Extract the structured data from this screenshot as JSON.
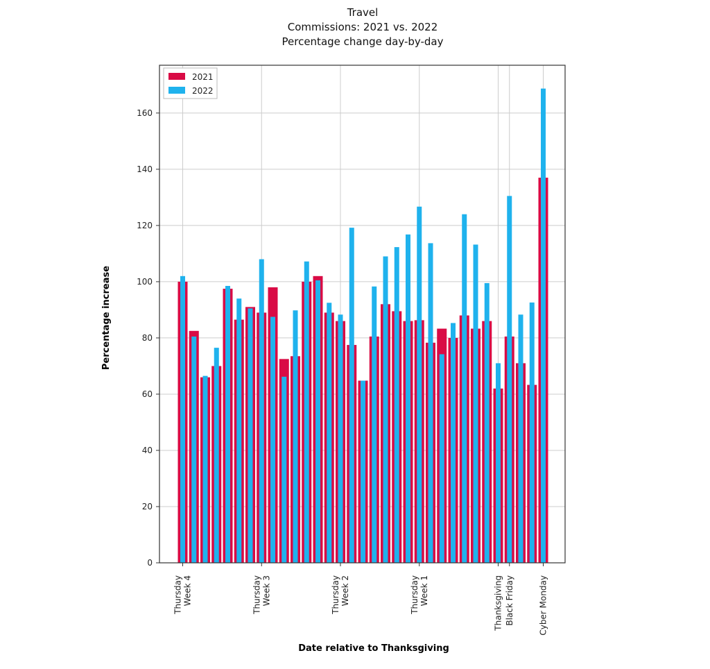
{
  "chart_data": {
    "type": "bar",
    "title_lines": [
      "Travel",
      "Commissions: 2021 vs. 2022",
      "Percentage change day-by-day"
    ],
    "xlabel": "Date relative to Thanksgiving",
    "ylabel": "Percentage increase",
    "ylim": [
      0,
      177
    ],
    "yticks": [
      0,
      20,
      40,
      60,
      80,
      100,
      120,
      140,
      160
    ],
    "grid": true,
    "legend_position": "top-left",
    "x_ticks": [
      {
        "index": 0,
        "lines": [
          "Thursday",
          "Week 4"
        ]
      },
      {
        "index": 7,
        "lines": [
          "Thursday",
          "Week  3"
        ]
      },
      {
        "index": 14,
        "lines": [
          "Thursday",
          "Week 2"
        ]
      },
      {
        "index": 21,
        "lines": [
          "Thursday",
          "Week 1"
        ]
      },
      {
        "index": 28,
        "lines": [
          "Thanksgiving"
        ]
      },
      {
        "index": 29,
        "lines": [
          "Black Friday"
        ]
      },
      {
        "index": 32,
        "lines": [
          "Cyber Monday"
        ]
      }
    ],
    "series": [
      {
        "name": "2021",
        "color": "#d90b45",
        "values": [
          100,
          82.5,
          66,
          70,
          97.5,
          86.5,
          91,
          89,
          98,
          72.5,
          73.5,
          100,
          102,
          89,
          86,
          77.5,
          64.8,
          80.5,
          92,
          89.5,
          86,
          86.3,
          78.3,
          83.3,
          80,
          88,
          83.3,
          86,
          62,
          80.5,
          71,
          63.3,
          137
        ]
      },
      {
        "name": "2022",
        "color": "#1fb2ed",
        "values": [
          102,
          80.5,
          66.5,
          76.5,
          98.5,
          94,
          90.5,
          108,
          87.5,
          66.2,
          89.8,
          107.2,
          100.5,
          92.5,
          88.3,
          119.2,
          64.8,
          98.3,
          109,
          112.3,
          116.8,
          126.7,
          113.7,
          74.2,
          85.3,
          124,
          113.2,
          99.5,
          71,
          130.5,
          88.3,
          92.6,
          168.7
        ]
      }
    ]
  }
}
